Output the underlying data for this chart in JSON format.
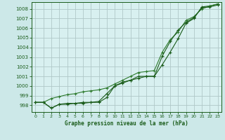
{
  "title": "Graphe pression niveau de la mer (hPa)",
  "bg_color": "#cce8e8",
  "plot_bg_color": "#d8f0f0",
  "grid_color": "#b0c8c8",
  "line_color1": "#1a5c1a",
  "line_color2": "#2d7a2d",
  "xlim": [
    -0.5,
    23.5
  ],
  "ylim": [
    997.3,
    1008.7
  ],
  "yticks": [
    998,
    999,
    1000,
    1001,
    1002,
    1003,
    1004,
    1005,
    1006,
    1007,
    1008
  ],
  "xticks": [
    0,
    1,
    2,
    3,
    4,
    5,
    6,
    7,
    8,
    9,
    10,
    11,
    12,
    13,
    14,
    15,
    16,
    17,
    18,
    19,
    20,
    21,
    22,
    23
  ],
  "series1_x": [
    0,
    1,
    2,
    3,
    4,
    5,
    6,
    7,
    8,
    9,
    10,
    11,
    12,
    13,
    14,
    15,
    16,
    17,
    18,
    19,
    20,
    21,
    22,
    23
  ],
  "series1_y": [
    998.3,
    998.3,
    997.7,
    998.1,
    998.2,
    998.2,
    998.3,
    998.3,
    998.3,
    998.8,
    1000.0,
    1000.4,
    1000.6,
    1000.8,
    1001.0,
    1001.0,
    1003.1,
    1004.6,
    1005.8,
    1006.6,
    1007.1,
    1008.1,
    1008.2,
    1008.4
  ],
  "series2_x": [
    0,
    1,
    2,
    3,
    4,
    5,
    6,
    7,
    8,
    9,
    10,
    11,
    12,
    13,
    14,
    15,
    16,
    17,
    18,
    19,
    20,
    21,
    22,
    23
  ],
  "series2_y": [
    998.3,
    998.3,
    998.7,
    998.9,
    999.1,
    999.2,
    999.4,
    999.5,
    999.6,
    999.8,
    1000.2,
    1000.6,
    1001.0,
    1001.4,
    1001.5,
    1001.6,
    1003.5,
    1004.8,
    1005.6,
    1006.8,
    1007.2,
    1008.0,
    1008.3,
    1008.5
  ],
  "series3_x": [
    0,
    1,
    2,
    3,
    4,
    5,
    6,
    7,
    8,
    9,
    10,
    11,
    12,
    13,
    14,
    15,
    16,
    17,
    18,
    19,
    20,
    21,
    22,
    23
  ],
  "series3_y": [
    998.3,
    998.3,
    997.7,
    998.1,
    998.1,
    998.2,
    998.2,
    998.3,
    998.4,
    999.2,
    1000.0,
    1000.3,
    1000.6,
    1001.0,
    1001.0,
    1001.0,
    1002.2,
    1003.5,
    1004.9,
    1006.5,
    1007.0,
    1008.2,
    1008.3,
    1008.5
  ]
}
